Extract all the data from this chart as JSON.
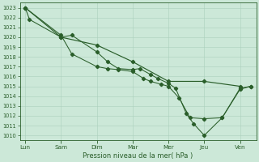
{
  "xlabel": "Pression niveau de la mer( hPa )",
  "ylim": [
    1009.5,
    1023.5
  ],
  "yticks": [
    1010,
    1011,
    1012,
    1013,
    1014,
    1015,
    1016,
    1017,
    1018,
    1019,
    1020,
    1021,
    1022,
    1023
  ],
  "x_labels": [
    "Lun",
    "Sam",
    "Dim",
    "Mar",
    "Mer",
    "Jeu",
    "Ven"
  ],
  "x_positions": [
    0,
    1,
    2,
    3,
    4,
    5,
    6
  ],
  "bg_color": "#cce8d8",
  "grid_color": "#aacfbc",
  "line_color": "#2a5e2a",
  "smooth_line": {
    "x": [
      0,
      1,
      2,
      3,
      4,
      5,
      6
    ],
    "y": [
      1023,
      1020,
      1019.2,
      1017.5,
      1015.5,
      1015.5,
      1015.0
    ]
  },
  "line1": {
    "x": [
      0,
      0.12,
      1.0,
      1.3,
      2.0,
      2.3,
      2.6,
      3.0,
      3.2,
      3.5,
      3.7,
      4.0,
      4.2,
      4.5,
      4.7,
      5.0,
      5.5,
      6.0,
      6.3
    ],
    "y": [
      1023,
      1021.8,
      1020,
      1020.2,
      1018.5,
      1017.5,
      1016.8,
      1016.7,
      1016.8,
      1016.2,
      1015.8,
      1015.3,
      1014.8,
      1012.2,
      1011.2,
      1010.0,
      1011.8,
      1014.7,
      1015.0
    ]
  },
  "line2": {
    "x": [
      0,
      1.0,
      1.3,
      2.0,
      2.3,
      2.6,
      3.0,
      3.3,
      3.5,
      3.8,
      4.0,
      4.3,
      4.6,
      5.0,
      5.5,
      6.0,
      6.3
    ],
    "y": [
      1023,
      1020.2,
      1018.3,
      1017.0,
      1016.8,
      1016.7,
      1016.5,
      1015.8,
      1015.5,
      1015.2,
      1015.0,
      1013.8,
      1011.8,
      1011.7,
      1011.8,
      1014.8,
      1015.0
    ]
  },
  "marker": "D",
  "markersize": 2.2,
  "linewidth": 0.75
}
